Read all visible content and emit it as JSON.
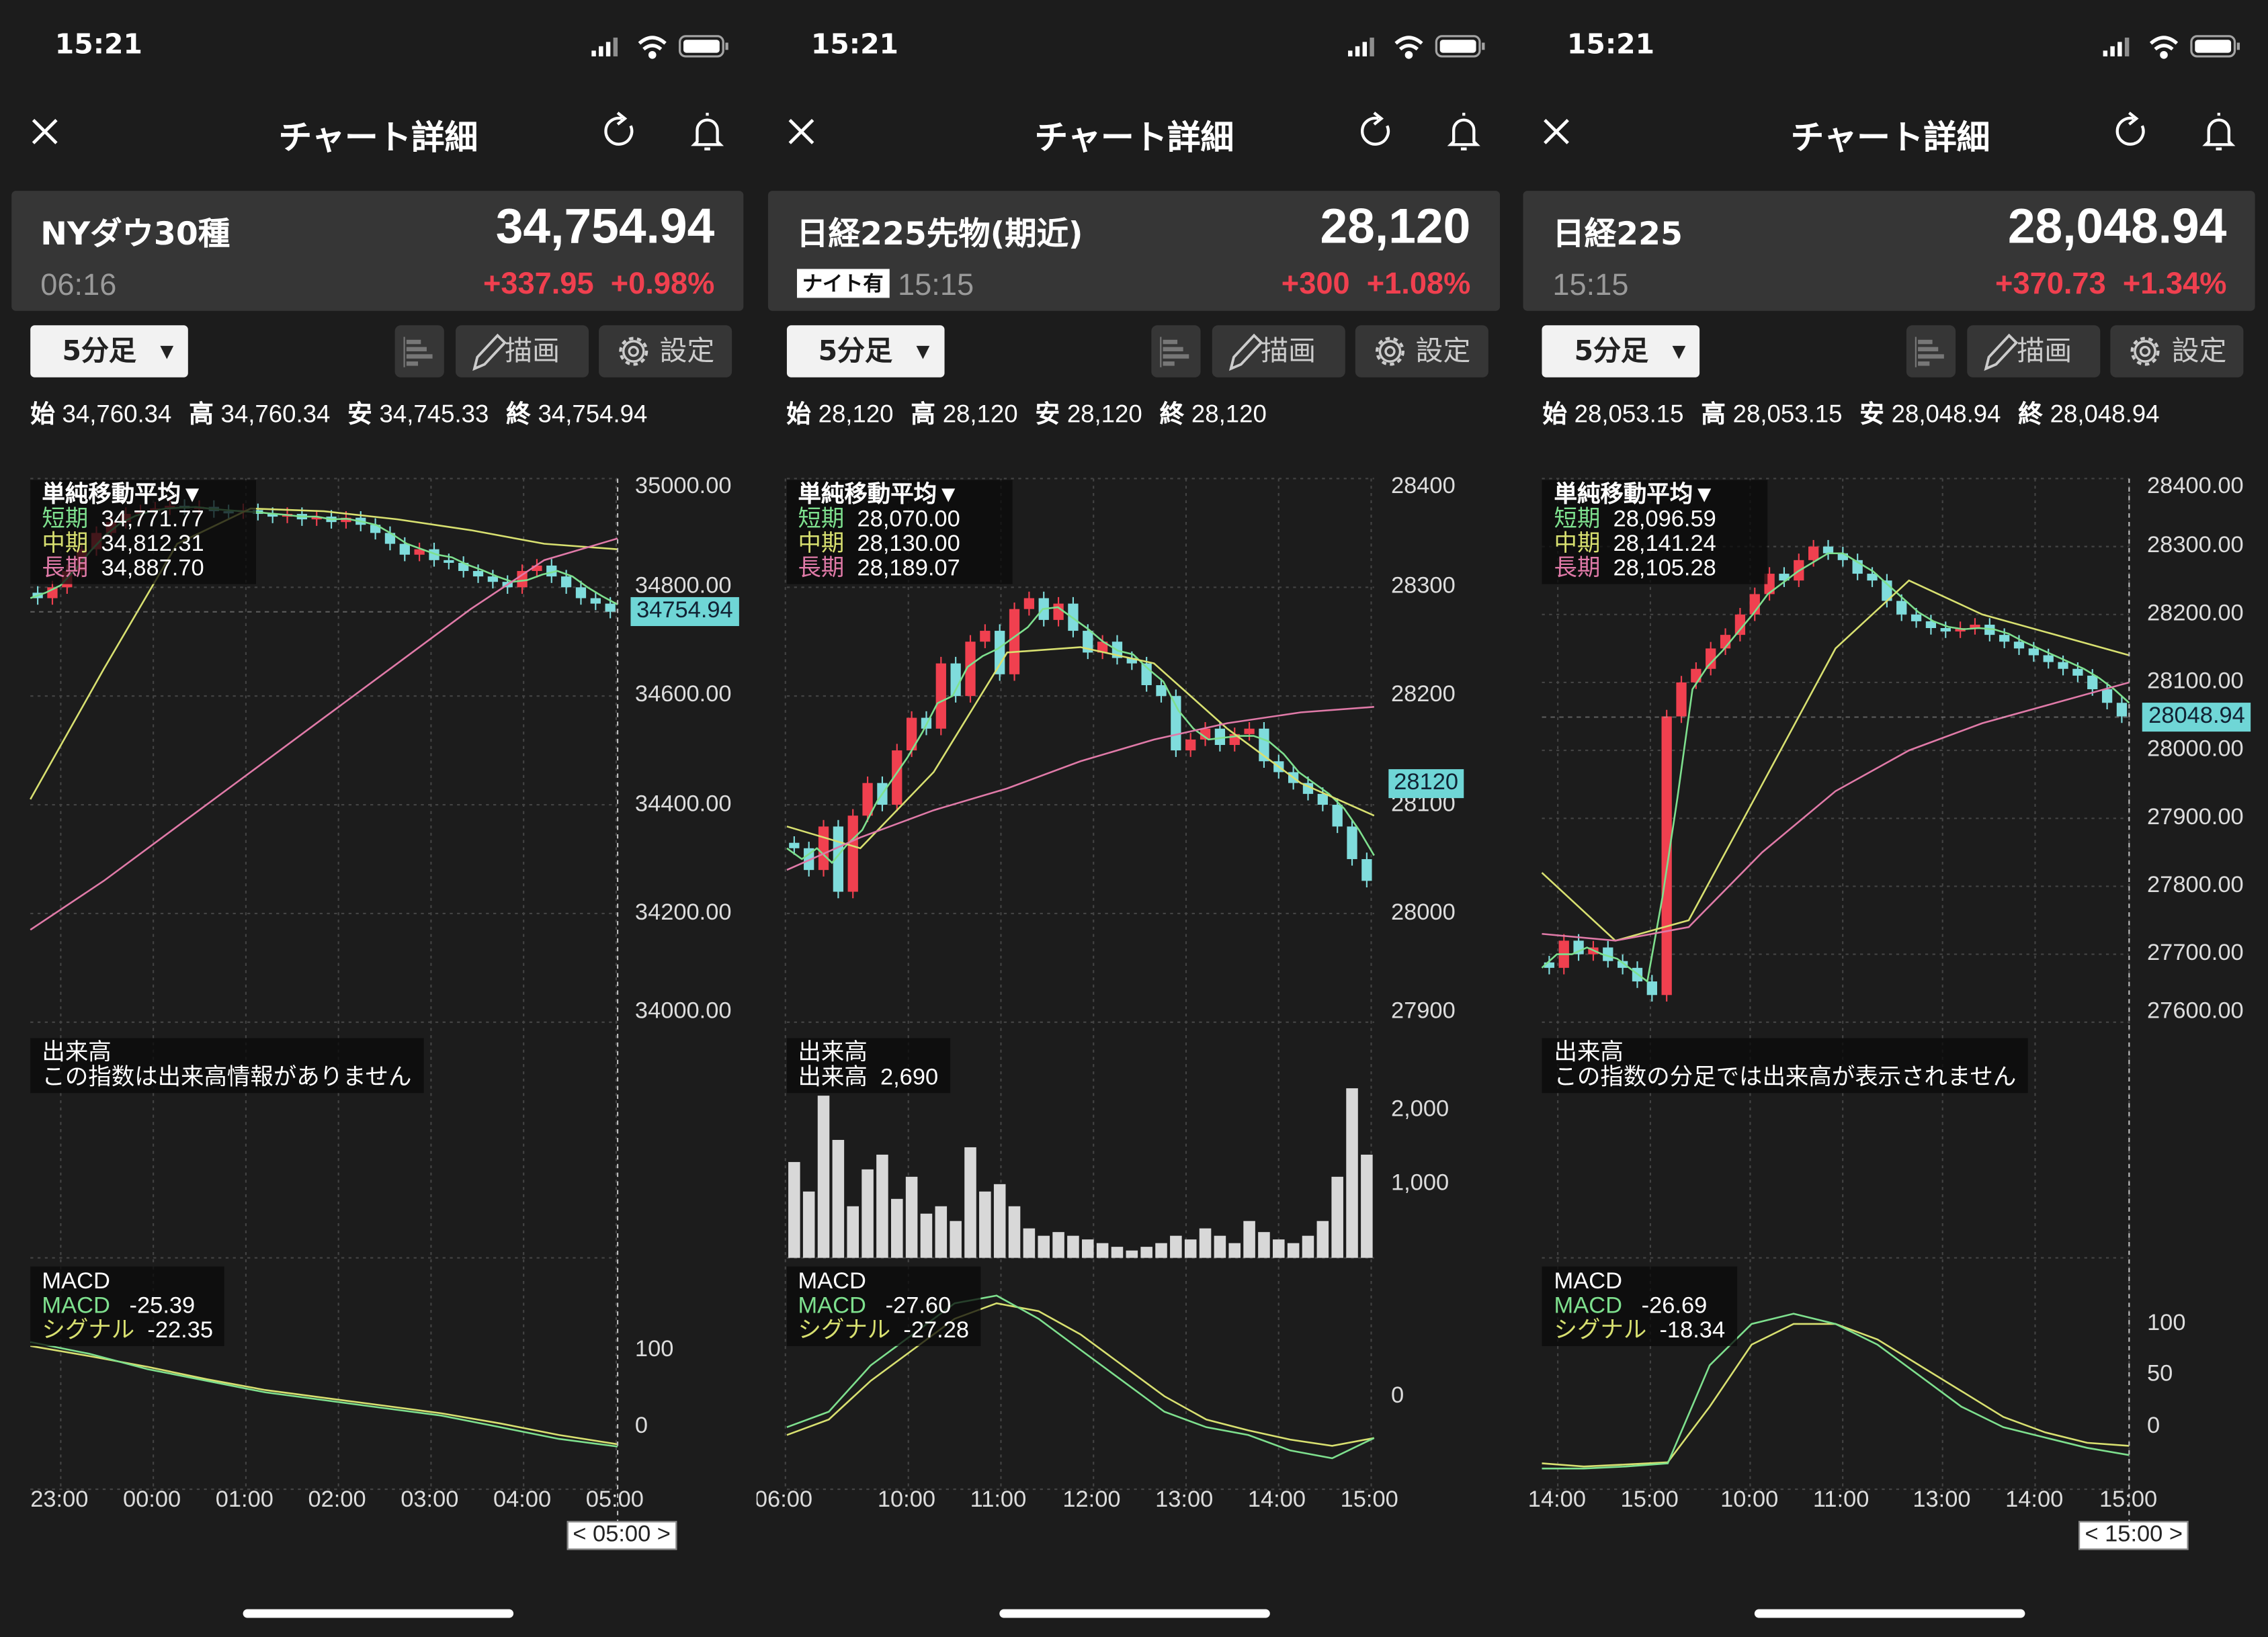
{
  "colors": {
    "up": "#f0404f",
    "down": "#7fdcdc",
    "short_ma": "#7ee08e",
    "mid_ma": "#d8e070",
    "long_ma": "#e07aa8",
    "macd": "#7ee08e",
    "signal": "#d8e070",
    "volume": "#d8d8d8"
  },
  "panels": [
    {
      "status_time": "15:21",
      "header": {
        "title": "チャート詳細",
        "close_icon": "close-icon",
        "refresh_icon": "refresh-icon",
        "bell_icon": "bell-icon"
      },
      "quote": {
        "name": "NYダウ30種",
        "price": "34,754.94",
        "time": "06:16",
        "change": "+337.95",
        "change_pct": "+0.98%"
      },
      "controls": {
        "interval": "5分足",
        "draw": "描画",
        "settings": "設定"
      },
      "ohlc": {
        "open_label": "始",
        "open": "34,760.34",
        "high_label": "高",
        "high": "34,760.34",
        "low_label": "安",
        "low": "34,745.33",
        "close_label": "終",
        "close": "34,754.94"
      },
      "ma_legend": {
        "title": "単純移動平均▼",
        "short_label": "短期",
        "short": "34,771.77",
        "mid_label": "中期",
        "mid": "34,812.31",
        "long_label": "長期",
        "long": "34,887.70"
      },
      "volume": {
        "title": "出来高",
        "message": "この指数は出来高情報がありません"
      },
      "macd_legend": {
        "title": "MACD",
        "macd_label": "MACD",
        "macd": "-25.39",
        "signal_label": "シグナル",
        "signal": "-22.35"
      },
      "chart_data": {
        "type": "candlestick",
        "ylim": [
          34000,
          35000
        ],
        "y_ticks": [
          "35000.00",
          "34800.00",
          "34600.00",
          "34400.00",
          "34200.00",
          "34000.00"
        ],
        "x_ticks": [
          "23:00",
          "00:00",
          "01:00",
          "02:00",
          "03:00",
          "04:00",
          "05:00"
        ],
        "closes": [
          34780,
          34800,
          34830,
          34870,
          34900,
          34920,
          34935,
          34940,
          34945,
          34950,
          34945,
          34948,
          34940,
          34938,
          34942,
          34935,
          34930,
          34935,
          34925,
          34930,
          34920,
          34928,
          34915,
          34900,
          34880,
          34860,
          34870,
          34850,
          34845,
          34830,
          34820,
          34810,
          34800,
          34830,
          34840,
          34820,
          34800,
          34780,
          34770,
          34755
        ],
        "mid_ma": [
          34410,
          34650,
          34880,
          34945,
          34940,
          34925,
          34905,
          34880,
          34870
        ],
        "long_ma": [
          34170,
          34260,
          34360,
          34460,
          34560,
          34660,
          34760,
          34850,
          34890
        ],
        "macd_ticks": [
          "100",
          "0"
        ],
        "macd_ylim": [
          -80,
          200
        ],
        "macd": [
          110,
          95,
          75,
          60,
          45,
          35,
          25,
          15,
          0,
          -15,
          -25
        ],
        "signal": [
          105,
          92,
          78,
          62,
          48,
          38,
          28,
          18,
          5,
          -10,
          -22
        ],
        "price_tag": "34754.94",
        "cursor_label": "< 05:00 >"
      }
    },
    {
      "status_time": "15:21",
      "header": {
        "title": "チャート詳細",
        "close_icon": "close-icon",
        "refresh_icon": "refresh-icon",
        "bell_icon": "bell-icon"
      },
      "quote": {
        "name": "日経225先物(期近)",
        "price": "28,120",
        "badge": "ナイト有",
        "time": "15:15",
        "change": "+300",
        "change_pct": "+1.08%"
      },
      "controls": {
        "interval": "5分足",
        "draw": "描画",
        "settings": "設定"
      },
      "ohlc": {
        "open_label": "始",
        "open": "28,120",
        "high_label": "高",
        "high": "28,120",
        "low_label": "安",
        "low": "28,120",
        "close_label": "終",
        "close": "28,120"
      },
      "ma_legend": {
        "title": "単純移動平均▼",
        "short_label": "短期",
        "short": "28,070.00",
        "mid_label": "中期",
        "mid": "28,130.00",
        "long_label": "長期",
        "long": "28,189.07"
      },
      "volume": {
        "title": "出来高",
        "value_label": "出来高",
        "value": "2,690",
        "ticks": [
          "2,000",
          "1,000"
        ],
        "values": [
          1300,
          900,
          2200,
          1600,
          700,
          1200,
          1400,
          800,
          1100,
          600,
          700,
          500,
          1500,
          900,
          1000,
          700,
          400,
          300,
          350,
          300,
          250,
          200,
          150,
          100,
          150,
          200,
          300,
          250,
          400,
          300,
          200,
          500,
          350,
          250,
          200,
          300,
          500,
          1100,
          2300,
          1400
        ]
      },
      "macd_legend": {
        "title": "MACD",
        "macd_label": "MACD",
        "macd": "-27.60",
        "signal_label": "シグナル",
        "signal": "-27.28"
      },
      "chart_data": {
        "type": "candlestick",
        "ylim": [
          27900,
          28400
        ],
        "y_ticks": [
          "28400",
          "28300",
          "28200",
          "28100",
          "28000",
          "27900"
        ],
        "x_ticks": [
          "06:00",
          "10:00",
          "11:00",
          "12:00",
          "13:00",
          "14:00",
          "15:00"
        ],
        "closes": [
          28060,
          28040,
          28080,
          28020,
          28090,
          28120,
          28100,
          28150,
          28180,
          28170,
          28230,
          28200,
          28250,
          28260,
          28220,
          28280,
          28290,
          28270,
          28285,
          28260,
          28240,
          28250,
          28235,
          28230,
          28210,
          28200,
          28150,
          28160,
          28170,
          28155,
          28165,
          28170,
          28140,
          28130,
          28120,
          28110,
          28100,
          28080,
          28050,
          28030
        ],
        "mid_ma": [
          28080,
          28060,
          28130,
          28240,
          28245,
          28230,
          28170,
          28120,
          28090
        ],
        "long_ma": [
          28040,
          28070,
          28095,
          28115,
          28140,
          28160,
          28175,
          28185,
          28190
        ],
        "macd_ticks": [
          "0"
        ],
        "macd_ylim": [
          -60,
          80
        ],
        "macd": [
          -20,
          -10,
          20,
          40,
          60,
          65,
          50,
          30,
          10,
          -10,
          -20,
          -25,
          -35,
          -40,
          -27
        ],
        "signal": [
          -25,
          -15,
          10,
          30,
          50,
          60,
          55,
          40,
          20,
          0,
          -15,
          -22,
          -28,
          -32,
          -27
        ],
        "price_tag": "28120"
      }
    },
    {
      "status_time": "15:21",
      "header": {
        "title": "チャート詳細",
        "close_icon": "close-icon",
        "refresh_icon": "refresh-icon",
        "bell_icon": "bell-icon"
      },
      "quote": {
        "name": "日経225",
        "price": "28,048.94",
        "time": "15:15",
        "change": "+370.73",
        "change_pct": "+1.34%"
      },
      "controls": {
        "interval": "5分足",
        "draw": "描画",
        "settings": "設定"
      },
      "ohlc": {
        "open_label": "始",
        "open": "28,053.15",
        "high_label": "高",
        "high": "28,053.15",
        "low_label": "安",
        "low": "28,048.94",
        "close_label": "終",
        "close": "28,048.94"
      },
      "ma_legend": {
        "title": "単純移動平均▼",
        "short_label": "短期",
        "short": "28,096.59",
        "mid_label": "中期",
        "mid": "28,141.24",
        "long_label": "長期",
        "long": "28,105.28"
      },
      "volume": {
        "title": "出来高",
        "message": "この指数の分足では出来高が表示されません"
      },
      "macd_legend": {
        "title": "MACD",
        "macd_label": "MACD",
        "macd": "-26.69",
        "signal_label": "シグナル",
        "signal": "-18.34"
      },
      "chart_data": {
        "type": "candlestick",
        "ylim": [
          27600,
          28400
        ],
        "y_ticks": [
          "28400.00",
          "28300.00",
          "28200.00",
          "28100.00",
          "28000.00",
          "27900.00",
          "27800.00",
          "27700.00",
          "27600.00"
        ],
        "x_ticks": [
          "14:00",
          "15:00",
          "10:00",
          "11:00",
          "13:00",
          "14:00",
          "15:00"
        ],
        "closes": [
          27680,
          27720,
          27700,
          27710,
          27690,
          27680,
          27660,
          27640,
          28050,
          28100,
          28120,
          28150,
          28170,
          28200,
          28230,
          28260,
          28250,
          28280,
          28300,
          28290,
          28280,
          28260,
          28250,
          28220,
          28200,
          28190,
          28180,
          28175,
          28180,
          28185,
          28170,
          28160,
          28150,
          28140,
          28130,
          28120,
          28110,
          28090,
          28070,
          28050
        ],
        "mid_ma": [
          27820,
          27720,
          27750,
          27950,
          28150,
          28250,
          28200,
          28170,
          28140
        ],
        "long_ma": [
          27730,
          27720,
          27740,
          27850,
          27940,
          28000,
          28040,
          28070,
          28100
        ],
        "macd_ticks": [
          "100",
          "50",
          "0"
        ],
        "macd_ylim": [
          -60,
          150
        ],
        "macd": [
          -40,
          -40,
          -38,
          -35,
          60,
          100,
          110,
          100,
          80,
          50,
          20,
          0,
          -10,
          -20,
          -27
        ],
        "signal": [
          -35,
          -38,
          -36,
          -34,
          20,
          80,
          100,
          100,
          85,
          60,
          35,
          10,
          -5,
          -15,
          -18
        ],
        "price_tag": "28048.94",
        "cursor_label": "< 15:00 >"
      }
    }
  ]
}
